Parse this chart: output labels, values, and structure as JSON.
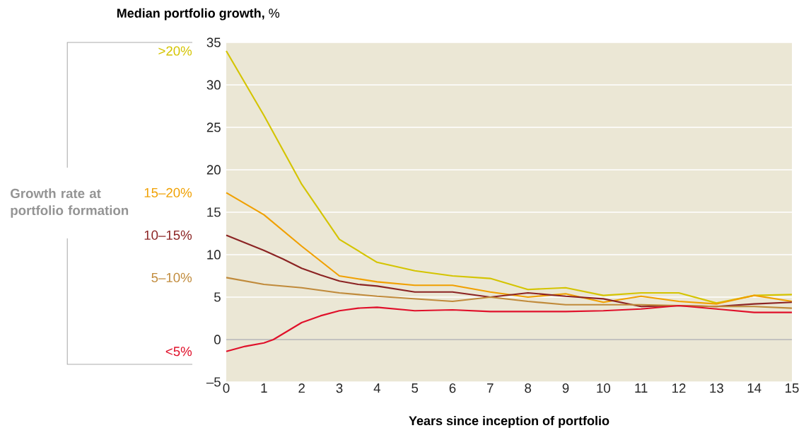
{
  "chart_data": {
    "type": "line",
    "ylabel": "**Median portfolio growth,** %",
    "xlabel": "Years since inception of portfolio",
    "legend_title": "Growth rate at portfolio formation",
    "xlim": [
      0,
      15
    ],
    "xticks": [
      0,
      1,
      2,
      3,
      4,
      5,
      6,
      7,
      8,
      9,
      10,
      11,
      12,
      13,
      14,
      15
    ],
    "ylim": [
      -5,
      35
    ],
    "yticks": [
      {
        "value": -5,
        "label": "–5"
      },
      0,
      5,
      10,
      15,
      20,
      25,
      30,
      35
    ],
    "grid": "y",
    "ref_lines": [
      {
        "axis": "y",
        "value": 0,
        "color": "#8c8c8c"
      }
    ],
    "series": [
      {
        "name": ">20%",
        "color": "#d4c400",
        "x": [
          0,
          1,
          2,
          3,
          4,
          5,
          6,
          7,
          8,
          9,
          10,
          11,
          12,
          13,
          14,
          15
        ],
        "values": [
          34.0,
          26.4,
          18.3,
          11.8,
          9.1,
          8.1,
          7.5,
          7.2,
          5.9,
          6.1,
          5.2,
          5.5,
          5.5,
          4.3,
          5.2,
          5.3
        ]
      },
      {
        "name": "15–20%",
        "color": "#f0a000",
        "x": [
          0,
          1,
          2,
          3,
          4,
          5,
          6,
          7,
          8,
          9,
          10,
          11,
          12,
          13,
          14,
          15
        ],
        "values": [
          17.3,
          14.7,
          11.0,
          7.5,
          6.8,
          6.4,
          6.4,
          5.6,
          5.0,
          5.4,
          4.4,
          5.1,
          4.5,
          4.2,
          5.2,
          4.5
        ]
      },
      {
        "name": "10–15%",
        "color": "#8b2323",
        "x": [
          0,
          1,
          1.5,
          2,
          2.5,
          3,
          3.5,
          4,
          5,
          6,
          7,
          8,
          9,
          10,
          11,
          12,
          13,
          14,
          15
        ],
        "values": [
          12.3,
          10.5,
          9.5,
          8.4,
          7.6,
          6.9,
          6.5,
          6.3,
          5.6,
          5.6,
          5.0,
          5.5,
          5.1,
          4.8,
          3.9,
          4.0,
          3.9,
          4.2,
          4.4
        ]
      },
      {
        "name": "5–10%",
        "color": "#c08a3a",
        "x": [
          0,
          1,
          2,
          3,
          4,
          5,
          6,
          7,
          8,
          9,
          10,
          11,
          12,
          13,
          14,
          15
        ],
        "values": [
          7.3,
          6.5,
          6.1,
          5.5,
          5.1,
          4.8,
          4.5,
          5.0,
          4.5,
          4.1,
          4.1,
          4.1,
          4.0,
          3.9,
          3.9,
          3.7
        ]
      },
      {
        "name": "<5%",
        "color": "#e0102a",
        "x": [
          0,
          0.5,
          1,
          1.25,
          2,
          2.5,
          3,
          3.5,
          4,
          5,
          6,
          7,
          8,
          9,
          10,
          11,
          12,
          13,
          14,
          15
        ],
        "values": [
          -1.4,
          -0.8,
          -0.4,
          0.0,
          2.0,
          2.8,
          3.4,
          3.7,
          3.8,
          3.4,
          3.5,
          3.3,
          3.3,
          3.3,
          3.4,
          3.6,
          4.0,
          3.6,
          3.2,
          3.2
        ]
      }
    ]
  }
}
